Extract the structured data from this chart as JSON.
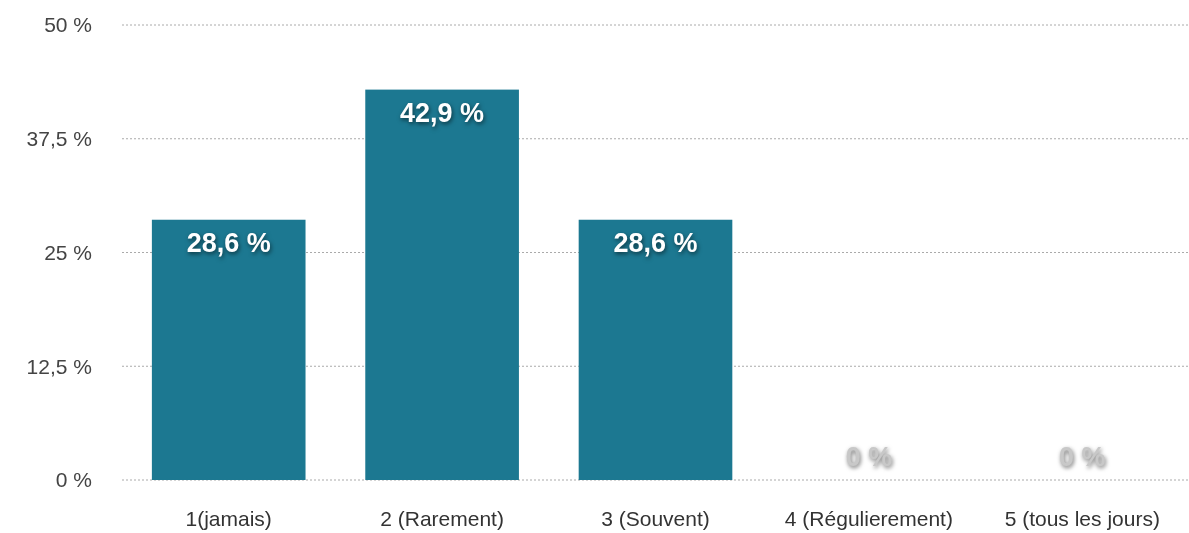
{
  "chart_data": {
    "type": "bar",
    "categories": [
      "1(jamais)",
      "2 (Rarement)",
      "3 (Souvent)",
      "4 (Régulierement)",
      "5 (tous les jours)"
    ],
    "values": [
      28.6,
      42.9,
      28.6,
      0,
      0
    ],
    "value_labels": [
      "28,6 %",
      "42,9 %",
      "28,6 %",
      "0 %",
      "0 %"
    ],
    "color": "#1c7891",
    "ylim": [
      0,
      50
    ],
    "yticks": [
      {
        "value": 0,
        "label": "0 %"
      },
      {
        "value": 12.5,
        "label": "12,5 %"
      },
      {
        "value": 25,
        "label": "25 %"
      },
      {
        "value": 37.5,
        "label": "37,5 %"
      },
      {
        "value": 50,
        "label": "50 %"
      }
    ],
    "grid": "y"
  }
}
